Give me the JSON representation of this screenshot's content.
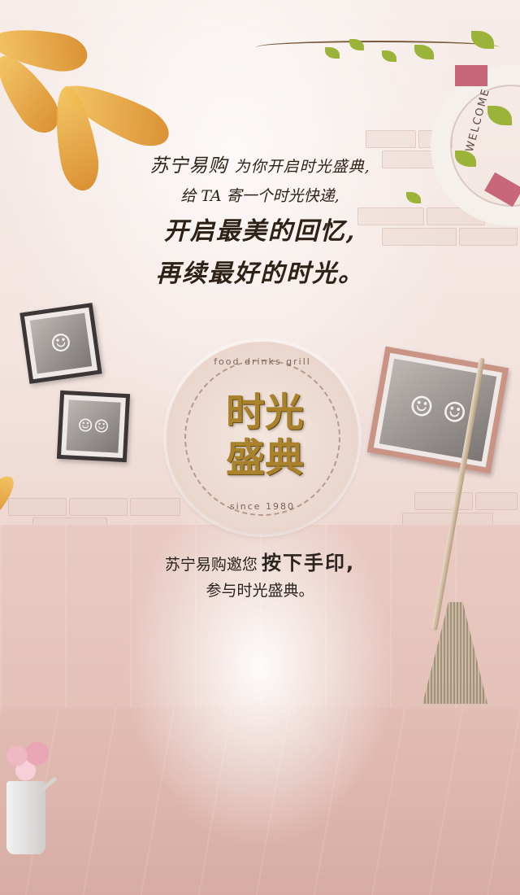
{
  "intro": {
    "line1_brand": "苏宁易购",
    "line1_rest": "为你开启时光盛典,",
    "line2": "给 TA 寄一个时光快递,",
    "line3": "开启最美的回忆,",
    "line4": "再续最好的时光。"
  },
  "ring_text": "WELCOME",
  "seal": {
    "top_text": "food drinks grill",
    "title_line1": "时光",
    "title_line2": "盛典",
    "bottom_text": "since 1980"
  },
  "invite": {
    "prefix": "苏宁易购邀您",
    "action": "按下手印,",
    "suffix": "参与时光盛典。"
  },
  "colors": {
    "seal_gold": "#a9822b",
    "ring_band": "#c8667a",
    "text_dark": "#2e2218"
  },
  "icons": {
    "leaf": "leaf-icon",
    "broom": "broom-icon",
    "ring": "life-ring-icon",
    "vine": "vine-icon",
    "flowers": "flower-pot-icon"
  }
}
